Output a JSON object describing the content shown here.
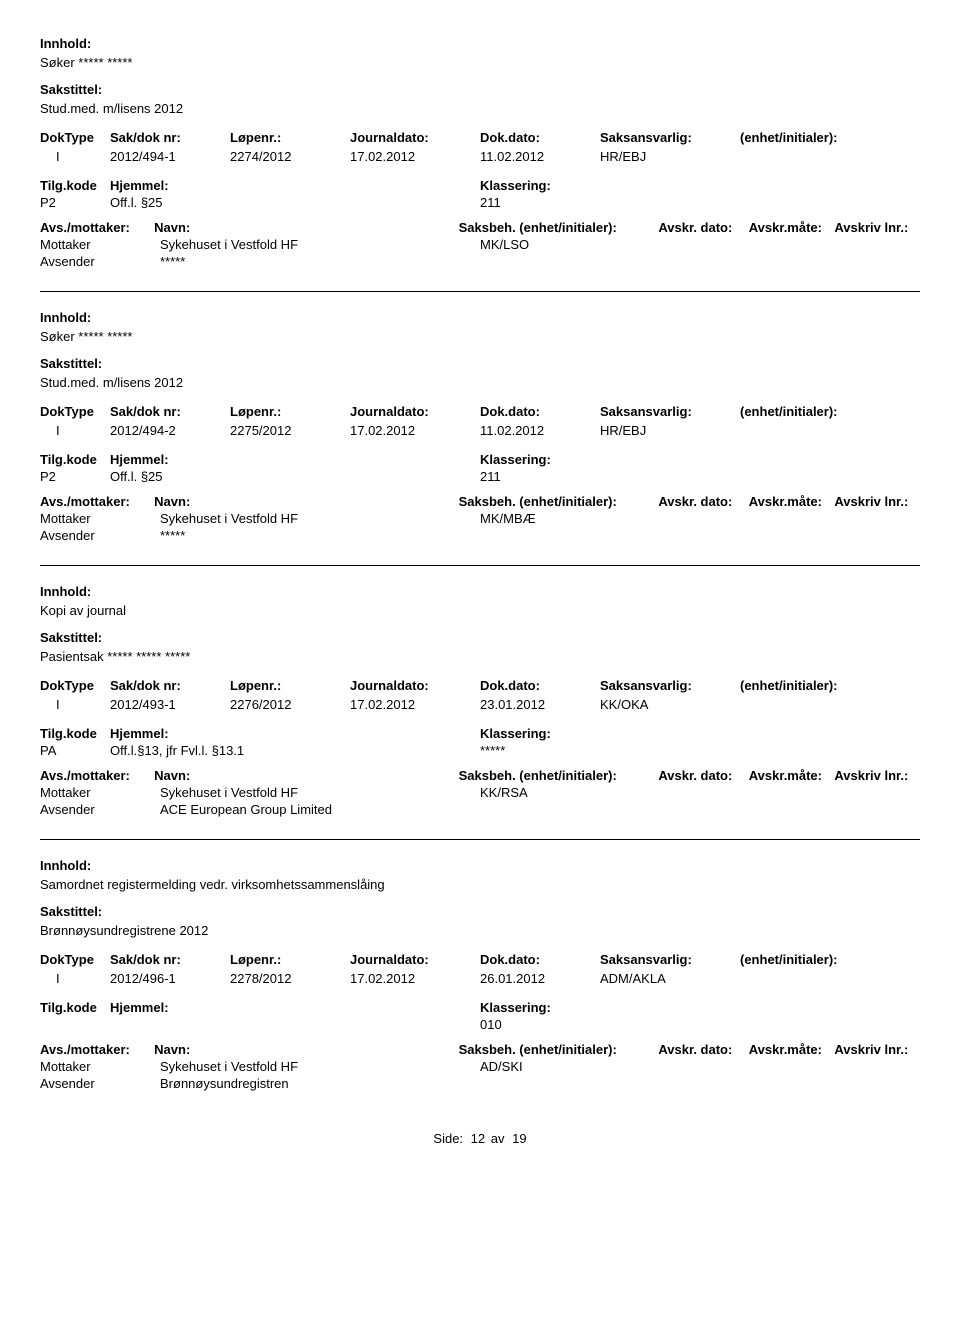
{
  "labels": {
    "innhold": "Innhold:",
    "sakstittel": "Sakstittel:",
    "doktype": "DokType",
    "sakdok": "Sak/dok nr:",
    "lopenr": "Løpenr.:",
    "journaldato": "Journaldato:",
    "dokdato": "Dok.dato:",
    "saksansvarlig": "Saksansvarlig:",
    "enhet": "(enhet/initialer):",
    "tilgkode": "Tilg.kode",
    "hjemmel": "Hjemmel:",
    "klassering": "Klassering:",
    "avsmottaker": "Avs./mottaker:",
    "navn": "Navn:",
    "saksbeh": "Saksbeh.",
    "saksbeh_enhet": "(enhet/initialer):",
    "avskrdato": "Avskr. dato:",
    "avskrmate": "Avskr.måte:",
    "avskrivlnr": "Avskriv lnr.:",
    "mottaker": "Mottaker",
    "avsender": "Avsender",
    "side": "Side:",
    "av": "av"
  },
  "footer": {
    "page": "12",
    "total": "19"
  },
  "entries": [
    {
      "innhold": "Søker ***** *****",
      "sakstittel": "Stud.med. m/lisens 2012",
      "doktype": "I",
      "sakdok": "2012/494-1",
      "lopenr": "2274/2012",
      "journaldato": "17.02.2012",
      "dokdato": "11.02.2012",
      "saksansvarlig": "HR/EBJ",
      "tilgkode": "P2",
      "hjemmel": "Off.l. §25",
      "klassering": "211",
      "saksbeh": "MK/LSO",
      "mottaker": "Sykehuset i Vestfold HF",
      "avsender": "*****"
    },
    {
      "innhold": "Søker ***** *****",
      "sakstittel": "Stud.med. m/lisens 2012",
      "doktype": "I",
      "sakdok": "2012/494-2",
      "lopenr": "2275/2012",
      "journaldato": "17.02.2012",
      "dokdato": "11.02.2012",
      "saksansvarlig": "HR/EBJ",
      "tilgkode": "P2",
      "hjemmel": "Off.l. §25",
      "klassering": "211",
      "saksbeh": "MK/MBÆ",
      "mottaker": "Sykehuset i Vestfold HF",
      "avsender": "*****"
    },
    {
      "innhold": "Kopi av journal",
      "sakstittel": "Pasientsak ***** ***** *****",
      "doktype": "I",
      "sakdok": "2012/493-1",
      "lopenr": "2276/2012",
      "journaldato": "17.02.2012",
      "dokdato": "23.01.2012",
      "saksansvarlig": "KK/OKA",
      "tilgkode": "PA",
      "hjemmel": "Off.l.§13, jfr Fvl.l. §13.1",
      "klassering": "*****",
      "saksbeh": "KK/RSA",
      "mottaker": "Sykehuset i Vestfold HF",
      "avsender": "ACE European Group Limited"
    },
    {
      "innhold": "Samordnet registermelding vedr. virksomhetssammenslåing",
      "sakstittel": "Brønnøysundregistrene 2012",
      "doktype": "I",
      "sakdok": "2012/496-1",
      "lopenr": "2278/2012",
      "journaldato": "17.02.2012",
      "dokdato": "26.01.2012",
      "saksansvarlig": "ADM/AKLA",
      "tilgkode": "",
      "hjemmel": "",
      "klassering": "010",
      "saksbeh": "AD/SKI",
      "mottaker": "Sykehuset i Vestfold HF",
      "avsender": "Brønnøysundregistren"
    }
  ]
}
